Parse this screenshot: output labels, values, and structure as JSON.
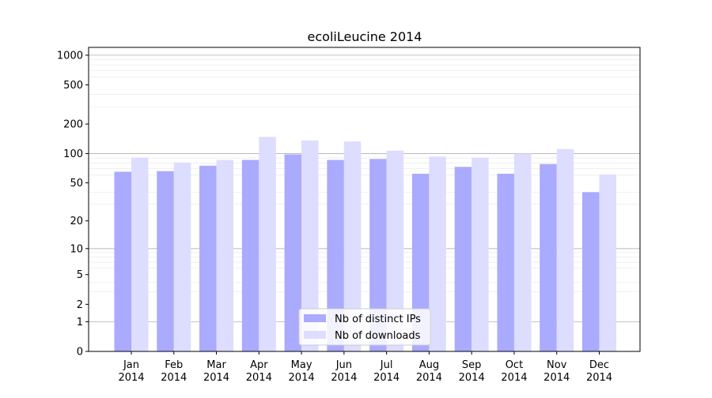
{
  "chart_data": {
    "type": "bar",
    "title": "ecoliLeucine 2014",
    "xlabel": "",
    "ylabel": "",
    "y_scale": "symlog",
    "ylim": [
      0,
      1200
    ],
    "grid": true,
    "legend_position": "bottom-center",
    "categories": [
      [
        "Jan",
        "2014"
      ],
      [
        "Feb",
        "2014"
      ],
      [
        "Mar",
        "2014"
      ],
      [
        "Apr",
        "2014"
      ],
      [
        "May",
        "2014"
      ],
      [
        "Jun",
        "2014"
      ],
      [
        "Jul",
        "2014"
      ],
      [
        "Aug",
        "2014"
      ],
      [
        "Sep",
        "2014"
      ],
      [
        "Oct",
        "2014"
      ],
      [
        "Nov",
        "2014"
      ],
      [
        "Dec",
        "2014"
      ]
    ],
    "y_ticks": [
      "0",
      "1",
      "2",
      "5",
      "10",
      "20",
      "50",
      "100",
      "200",
      "500",
      "1000"
    ],
    "series": [
      {
        "name": "Nb of distinct IPs",
        "color": "#aaaaff",
        "values": [
          65,
          66,
          75,
          86,
          98,
          86,
          88,
          62,
          73,
          62,
          78,
          40
        ]
      },
      {
        "name": "Nb of downloads",
        "color": "#ddddff",
        "values": [
          91,
          81,
          86,
          148,
          136,
          133,
          107,
          93,
          91,
          100,
          111,
          61
        ]
      }
    ]
  }
}
